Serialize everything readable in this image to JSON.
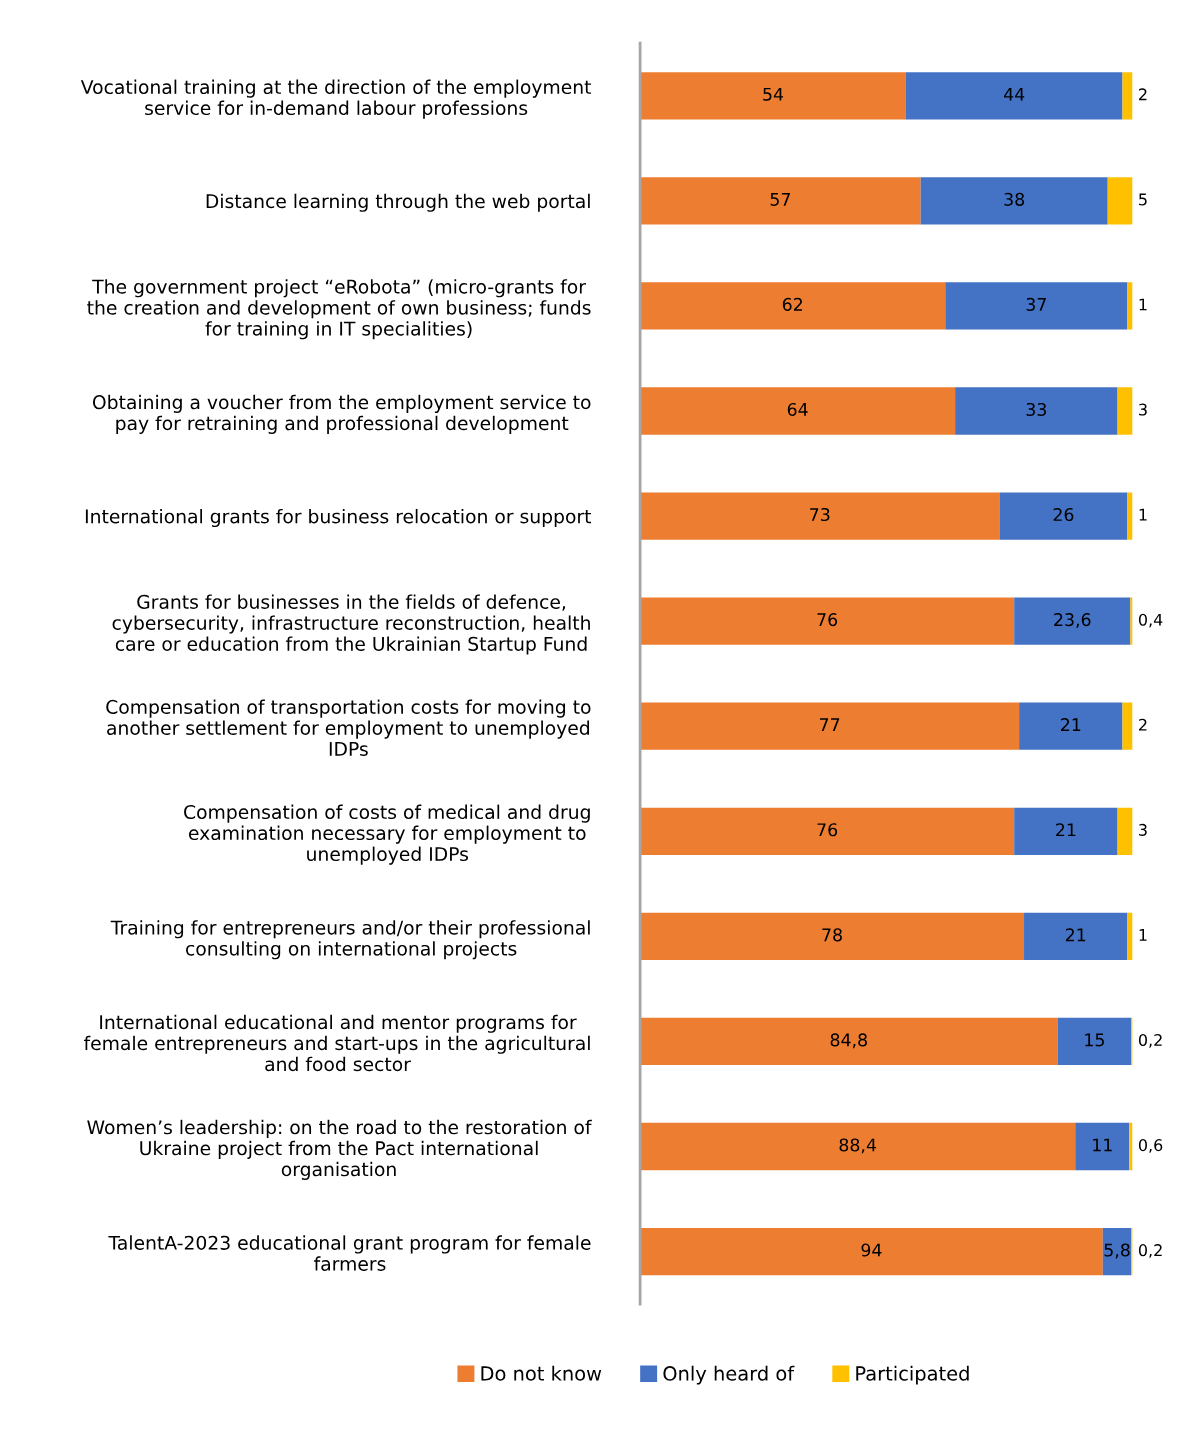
{
  "chart_data": {
    "type": "bar",
    "orientation": "horizontal",
    "stacked": true,
    "legend": "bottom",
    "grid": false,
    "categories": [
      "Vocational training at the direction of the employment\nservice for in-demand labour professions",
      "Distance learning through the web portal",
      "The government project “eRobota” (micro-grants for\nthe creation and development of own business; funds\nfor training in IT specialities)",
      "Obtaining a voucher from the employment service to\npay for retraining and professional development",
      "International grants for business relocation or support",
      "Grants for businesses in the fields of defence,\ncybersecurity, infrastructure reconstruction, health\ncare or education from the Ukrainian Startup Fund",
      "Compensation of transportation costs for moving to\nanother settlement for employment to unemployed\nIDPs",
      "Compensation of costs of medical and drug\nexamination necessary for employment to\nunemployed IDPs",
      "Training for entrepreneurs and/or their professional\nconsulting on international projects",
      "International educational and mentor programs for\nfemale entrepreneurs and start-ups in the agricultural\nand food sector",
      "Women’s leadership: on the road to the restoration of\nUkraine project from the Pact international\norganisation",
      "TalentA-2023 educational grant program for female\nfarmers"
    ],
    "series": [
      {
        "name": "Do not know",
        "color": "#ed7d31",
        "values": [
          54,
          57,
          62,
          64,
          73,
          76,
          77,
          76,
          78,
          84.8,
          88.4,
          94
        ],
        "value_labels": [
          "54",
          "57",
          "62",
          "64",
          "73",
          "76",
          "77",
          "76",
          "78",
          "84,8",
          "88,4",
          "94"
        ]
      },
      {
        "name": "Only heard of",
        "color": "#4472c4",
        "values": [
          44,
          38,
          37,
          33,
          26,
          23.6,
          21,
          21,
          21,
          15,
          11,
          5.8
        ],
        "value_labels": [
          "44",
          "38",
          "37",
          "33",
          "26",
          "23,6",
          "21",
          "21",
          "21",
          "15",
          "11",
          "5,8"
        ]
      },
      {
        "name": "Participated",
        "color": "#ffc000",
        "values": [
          2,
          5,
          1,
          3,
          1,
          0.4,
          2,
          3,
          1,
          0.2,
          0.6,
          0.2
        ],
        "value_labels": [
          "2",
          "5",
          "1",
          "3",
          "1",
          "0,4",
          "2",
          "3",
          "1",
          "0,2",
          "0,6",
          "0,2"
        ]
      }
    ]
  }
}
